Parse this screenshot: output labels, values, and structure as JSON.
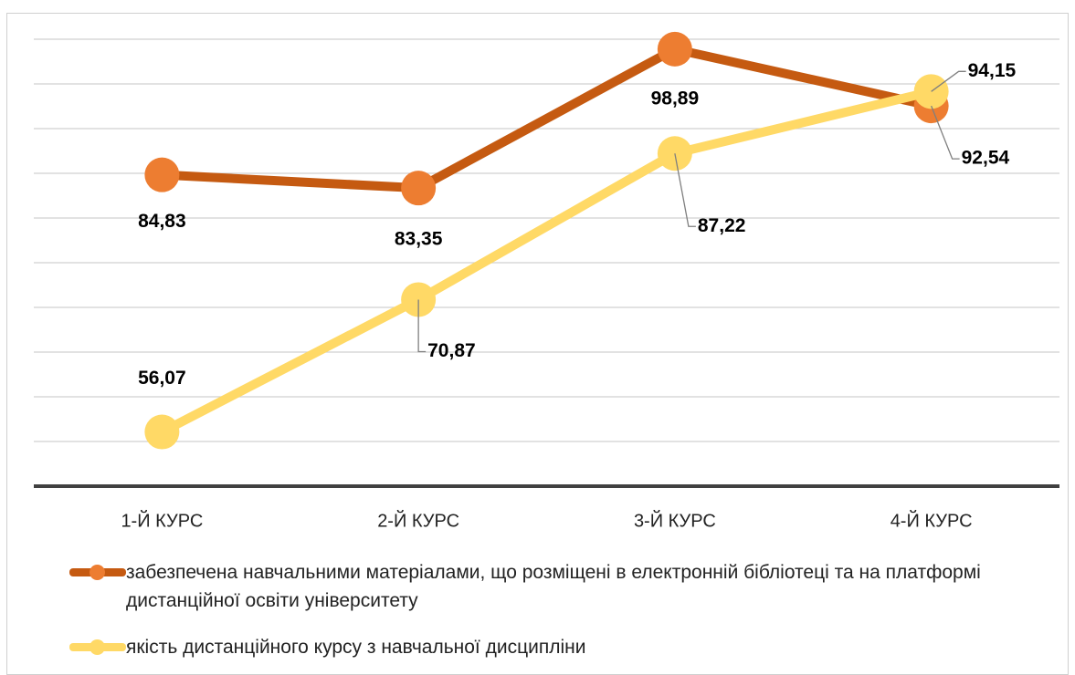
{
  "chart_data": {
    "type": "line",
    "categories": [
      "1-Й КУРС",
      "2-Й КУРС",
      "3-Й КУРС",
      "4-Й КУРС"
    ],
    "series": [
      {
        "name": "забезпечена навчальними матеріалами, що розміщені в електронній бібліотеці та на платформі дистанційної освіти університету",
        "color": "#c55a11",
        "marker_color": "#ed7d31",
        "values": [
          84.83,
          83.35,
          98.89,
          92.54
        ],
        "value_labels": [
          "84,83",
          "83,35",
          "98,89",
          "92,54"
        ]
      },
      {
        "name": "якість дистанційного курсу з навчальної дисципліни",
        "color": "#ffd966",
        "marker_color": "#ffd966",
        "values": [
          56.07,
          70.87,
          87.22,
          94.15
        ],
        "value_labels": [
          "56,07",
          "70,87",
          "87,22",
          "94,15"
        ]
      }
    ],
    "ylim": [
      50,
      100
    ],
    "yticks": [
      50,
      55,
      60,
      65,
      70,
      75,
      80,
      85,
      90,
      95,
      100
    ],
    "grid": true
  }
}
